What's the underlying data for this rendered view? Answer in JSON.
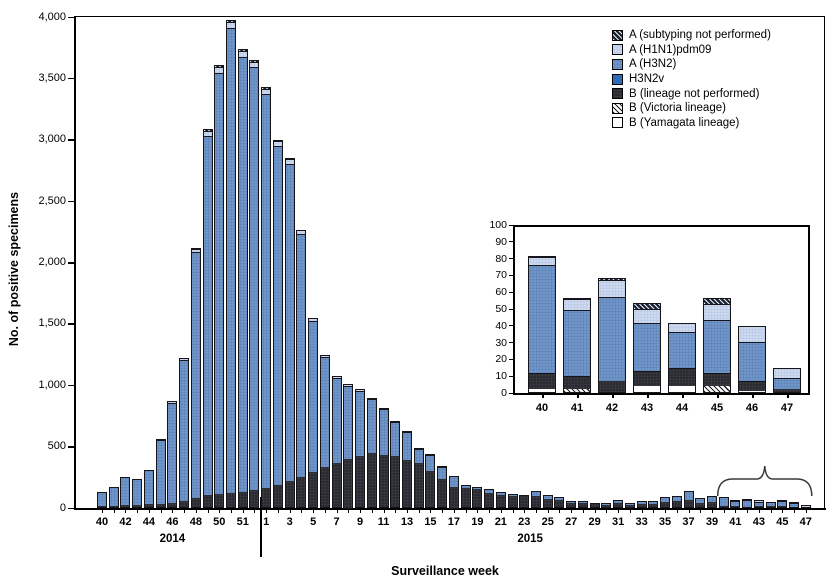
{
  "axes": {
    "y_title": "No. of positive specimens",
    "x_title": "Surveillance week"
  },
  "legend": {
    "items": [
      {
        "key": "sub",
        "label": "A (subtyping not performed)"
      },
      {
        "key": "h1n1",
        "label": "A (H1N1)pdm09"
      },
      {
        "key": "h3n2",
        "label": "A (H3N2)"
      },
      {
        "key": "h3n2v",
        "label": "H3N2v"
      },
      {
        "key": "b",
        "label": "B (lineage not performed)"
      },
      {
        "key": "vic",
        "label": "B (Victoria lineage)"
      },
      {
        "key": "yam",
        "label": "B (Yamagata lineage)"
      }
    ]
  },
  "colors": {
    "h3n2": "#7095ca",
    "h1n1": "#cdd9ef",
    "h3n2v": "#2f6cb5",
    "b": "#2a2a31",
    "axis": "#000000",
    "white": "#ffffff"
  },
  "chart_data": [
    {
      "id": "main",
      "type": "bar",
      "stacked": true,
      "title": "",
      "ylabel": "No. of positive specimens",
      "xlabel": "Surveillance week",
      "ylim": [
        0,
        4000
      ],
      "ytick_labels": [
        "0",
        "500",
        "1,000",
        "1,500",
        "2,000",
        "2,500",
        "3,000",
        "3,500",
        "4,000"
      ],
      "week_labels": [
        "40",
        "",
        "42",
        "",
        "44",
        "",
        "46",
        "",
        "48",
        "",
        "50",
        "",
        "51",
        "",
        "1",
        "",
        "3",
        "",
        "5",
        "",
        "7",
        "",
        "9",
        "",
        "11",
        "",
        "13",
        "",
        "15",
        "",
        "17",
        "",
        "19",
        "",
        "21",
        "",
        "23",
        "",
        "25",
        "",
        "27",
        "",
        "29",
        "",
        "31",
        "",
        "33",
        "",
        "35",
        "",
        "37",
        "",
        "39",
        "",
        "41",
        "",
        "43",
        "",
        "45",
        "",
        "47"
      ],
      "year_labels": [
        {
          "text": "2014",
          "center_index": 6
        },
        {
          "text": "2015",
          "center_index": 36.5
        }
      ],
      "divider_after_index": 13,
      "bracket": {
        "from_index": 53,
        "to_index": 60
      },
      "stack_order": [
        "yam",
        "vic",
        "b",
        "h3n2",
        "h1n1",
        "sub"
      ],
      "series": {
        "yam": [
          0,
          0,
          0,
          0,
          0,
          0,
          0,
          0,
          0,
          0,
          0,
          0,
          0,
          0,
          0,
          0,
          0,
          0,
          0,
          0,
          0,
          0,
          0,
          0,
          0,
          0,
          0,
          0,
          0,
          0,
          0,
          0,
          0,
          0,
          0,
          0,
          0,
          0,
          0,
          0,
          0,
          0,
          0,
          0,
          0,
          0,
          0,
          0,
          0,
          0,
          0,
          0,
          0,
          2,
          0,
          0,
          4,
          4,
          0,
          1,
          0
        ],
        "vic": [
          0,
          0,
          0,
          0,
          0,
          0,
          0,
          0,
          0,
          0,
          0,
          0,
          0,
          0,
          0,
          0,
          0,
          0,
          0,
          0,
          0,
          0,
          0,
          0,
          0,
          0,
          0,
          0,
          0,
          0,
          0,
          0,
          0,
          0,
          0,
          0,
          0,
          0,
          0,
          0,
          0,
          0,
          0,
          0,
          0,
          0,
          0,
          0,
          0,
          0,
          0,
          0,
          0,
          0,
          2,
          0,
          0,
          0,
          4,
          0,
          0
        ],
        "b": [
          15,
          15,
          20,
          20,
          25,
          30,
          40,
          55,
          80,
          100,
          110,
          120,
          130,
          140,
          160,
          185,
          215,
          250,
          290,
          330,
          360,
          395,
          420,
          445,
          430,
          420,
          390,
          360,
          300,
          230,
          170,
          160,
          150,
          115,
          100,
          95,
          90,
          90,
          70,
          60,
          40,
          35,
          25,
          22,
          35,
          20,
          28,
          28,
          45,
          50,
          60,
          40,
          45,
          9,
          7,
          7,
          8,
          10,
          7,
          5,
          2
        ],
        "h3n2": [
          105,
          150,
          225,
          205,
          280,
          515,
          807,
          1140,
          1990,
          2922,
          3425,
          3780,
          3535,
          3437,
          3203,
          2755,
          2578,
          1970,
          1223,
          888,
          687,
          587,
          524,
          429,
          366,
          268,
          219,
          111,
          123,
          95,
          76,
          17,
          12,
          33,
          18,
          8,
          8,
          38,
          23,
          18,
          10,
          10,
          10,
          8,
          20,
          10,
          17,
          17,
          35,
          40,
          70,
          30,
          45,
          64,
          39,
          49,
          28,
          21,
          31,
          23,
          6
        ],
        "h1n1": [
          0,
          0,
          0,
          0,
          0,
          0,
          5,
          8,
          20,
          30,
          35,
          38,
          35,
          35,
          32,
          28,
          27,
          22,
          15,
          12,
          10,
          10,
          9,
          9,
          8,
          7,
          6,
          5,
          4,
          3,
          2,
          2,
          2,
          1,
          1,
          1,
          1,
          1,
          1,
          1,
          0,
          0,
          0,
          0,
          0,
          0,
          0,
          0,
          0,
          0,
          0,
          0,
          0,
          4,
          6,
          10,
          8,
          5,
          9,
          10,
          6
        ],
        "sub": [
          0,
          0,
          0,
          0,
          0,
          5,
          8,
          12,
          20,
          28,
          30,
          32,
          30,
          28,
          25,
          22,
          20,
          18,
          12,
          10,
          8,
          8,
          7,
          7,
          6,
          5,
          5,
          4,
          3,
          2,
          2,
          1,
          1,
          1,
          1,
          1,
          1,
          1,
          0,
          0,
          0,
          0,
          0,
          0,
          0,
          0,
          0,
          0,
          0,
          0,
          0,
          0,
          0,
          2,
          2,
          2,
          5,
          1,
          5,
          0,
          0
        ]
      }
    },
    {
      "id": "inset",
      "type": "bar",
      "stacked": true,
      "ylim": [
        0,
        100
      ],
      "ytick_labels": [
        "0",
        "10",
        "20",
        "30",
        "40",
        "50",
        "60",
        "70",
        "80",
        "90",
        "100"
      ],
      "categories": [
        "40",
        "41",
        "42",
        "43",
        "44",
        "45",
        "46",
        "47"
      ],
      "stack_order": [
        "yam",
        "vic",
        "b",
        "h3n2",
        "h1n1",
        "sub"
      ],
      "series": {
        "yam": [
          2,
          0,
          0,
          4,
          4,
          0,
          1,
          0
        ],
        "vic": [
          0,
          2,
          0,
          0,
          0,
          4,
          0,
          0
        ],
        "b": [
          9,
          7,
          7,
          8,
          10,
          7,
          5,
          2
        ],
        "h3n2": [
          64,
          39,
          49,
          28,
          21,
          31,
          23,
          6
        ],
        "h1n1": [
          4,
          6,
          10,
          8,
          5,
          9,
          10,
          6
        ],
        "sub": [
          2,
          2,
          2,
          5,
          1,
          5,
          0,
          0
        ]
      }
    }
  ]
}
